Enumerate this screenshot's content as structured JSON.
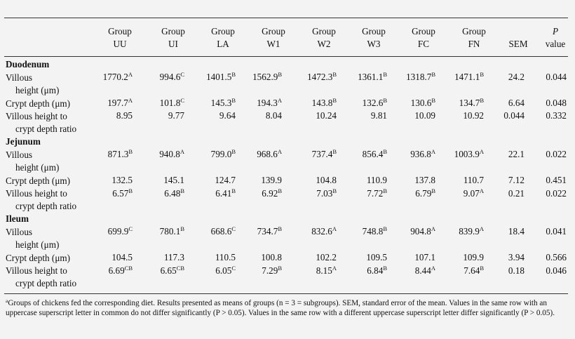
{
  "headers": [
    [
      "Group",
      "UU"
    ],
    [
      "Group",
      "UI"
    ],
    [
      "Group",
      "LA"
    ],
    [
      "Group",
      "W1"
    ],
    [
      "Group",
      "W2"
    ],
    [
      "Group",
      "W3"
    ],
    [
      "Group",
      "FC"
    ],
    [
      "Group",
      "FN"
    ],
    [
      "",
      "SEM"
    ],
    [
      "P",
      "value"
    ]
  ],
  "sections": [
    {
      "name": "Duodenum",
      "rows": [
        {
          "label1": "Villous",
          "label2": "height (μm)",
          "values": [
            [
              "1770.2",
              "A"
            ],
            [
              "994.6",
              "C"
            ],
            [
              "1401.5",
              "B"
            ],
            [
              "1562.9",
              "B"
            ],
            [
              "1472.3",
              "B"
            ],
            [
              "1361.1",
              "B"
            ],
            [
              "1318.7",
              "B"
            ],
            [
              "1471.1",
              "B"
            ],
            [
              "24.2",
              ""
            ],
            [
              "0.044",
              ""
            ]
          ]
        },
        {
          "label1": "Crypt depth (μm)",
          "label2": "",
          "values": [
            [
              "197.7",
              "A"
            ],
            [
              "101.8",
              "C"
            ],
            [
              "145.3",
              "B"
            ],
            [
              "194.3",
              "A"
            ],
            [
              "143.8",
              "B"
            ],
            [
              "132.6",
              "B"
            ],
            [
              "130.6",
              "B"
            ],
            [
              "134.7",
              "B"
            ],
            [
              "6.64",
              ""
            ],
            [
              "0.048",
              ""
            ]
          ]
        },
        {
          "label1": "Villous height to",
          "label2": "crypt depth ratio",
          "values": [
            [
              "8.95",
              ""
            ],
            [
              "9.77",
              ""
            ],
            [
              "9.64",
              ""
            ],
            [
              "8.04",
              ""
            ],
            [
              "10.24",
              ""
            ],
            [
              "9.81",
              ""
            ],
            [
              "10.09",
              ""
            ],
            [
              "10.92",
              ""
            ],
            [
              "0.044",
              ""
            ],
            [
              "0.332",
              ""
            ]
          ]
        }
      ]
    },
    {
      "name": "Jejunum",
      "rows": [
        {
          "label1": "Villous",
          "label2": "height (μm)",
          "values": [
            [
              "871.3",
              "B"
            ],
            [
              "940.8",
              "A"
            ],
            [
              "799.0",
              "B"
            ],
            [
              "968.6",
              "A"
            ],
            [
              "737.4",
              "B"
            ],
            [
              "856.4",
              "B"
            ],
            [
              "936.8",
              "A"
            ],
            [
              "1003.9",
              "A"
            ],
            [
              "22.1",
              ""
            ],
            [
              "0.022",
              ""
            ]
          ]
        },
        {
          "label1": "Crypt depth (μm)",
          "label2": "",
          "values": [
            [
              "132.5",
              ""
            ],
            [
              "145.1",
              ""
            ],
            [
              "124.7",
              ""
            ],
            [
              "139.9",
              ""
            ],
            [
              "104.8",
              ""
            ],
            [
              "110.9",
              ""
            ],
            [
              "137.8",
              ""
            ],
            [
              "110.7",
              ""
            ],
            [
              "7.12",
              ""
            ],
            [
              "0.451",
              ""
            ]
          ]
        },
        {
          "label1": "Villous height to",
          "label2": "crypt depth ratio",
          "values": [
            [
              "6.57",
              "B"
            ],
            [
              "6.48",
              "B"
            ],
            [
              "6.41",
              "B"
            ],
            [
              "6.92",
              "B"
            ],
            [
              "7.03",
              "B"
            ],
            [
              "7.72",
              "B"
            ],
            [
              "6.79",
              "B"
            ],
            [
              "9.07",
              "A"
            ],
            [
              "0.21",
              ""
            ],
            [
              "0.022",
              ""
            ]
          ]
        }
      ]
    },
    {
      "name": "Ileum",
      "rows": [
        {
          "label1": "Villous",
          "label2": "height (μm)",
          "values": [
            [
              "699.9",
              "C"
            ],
            [
              "780.1",
              "B"
            ],
            [
              "668.6",
              "C"
            ],
            [
              "734.7",
              "B"
            ],
            [
              "832.6",
              "A"
            ],
            [
              "748.8",
              "B"
            ],
            [
              "904.8",
              "A"
            ],
            [
              "839.9",
              "A"
            ],
            [
              "18.4",
              ""
            ],
            [
              "0.041",
              ""
            ]
          ]
        },
        {
          "label1": "Crypt depth (μm)",
          "label2": "",
          "values": [
            [
              "104.5",
              ""
            ],
            [
              "117.3",
              ""
            ],
            [
              "110.5",
              ""
            ],
            [
              "100.8",
              ""
            ],
            [
              "102.2",
              ""
            ],
            [
              "109.5",
              ""
            ],
            [
              "107.1",
              ""
            ],
            [
              "109.9",
              ""
            ],
            [
              "3.94",
              ""
            ],
            [
              "0.566",
              ""
            ]
          ]
        },
        {
          "label1": "Villous height to",
          "label2": "crypt depth ratio",
          "values": [
            [
              "6.69",
              "CB"
            ],
            [
              "6.65",
              "CB"
            ],
            [
              "6.05",
              "C"
            ],
            [
              "7.29",
              "B"
            ],
            [
              "8.15",
              "A"
            ],
            [
              "6.84",
              "B"
            ],
            [
              "8.44",
              "A"
            ],
            [
              "7.64",
              "B"
            ],
            [
              "0.18",
              ""
            ],
            [
              "0.046",
              ""
            ]
          ]
        }
      ]
    }
  ],
  "footnote": {
    "marker": "a",
    "text": "Groups of chickens fed the corresponding diet. Results presented as means of groups (n = 3 = subgroups). SEM, standard error of the mean. Values in the same row with an uppercase superscript letter in common do not differ significantly (P > 0.05). Values in the same row with a different uppercase superscript letter differ significantly (P > 0.05)."
  }
}
